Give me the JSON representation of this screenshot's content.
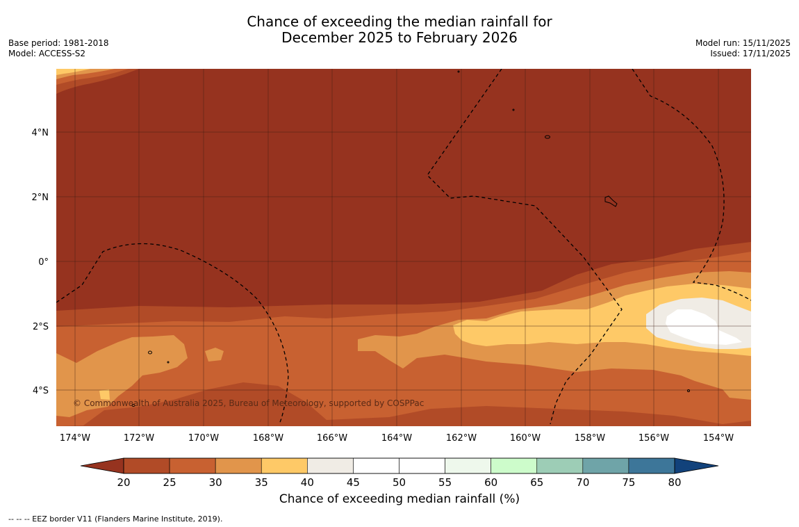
{
  "title": {
    "line1": "Chance of exceeding the median rainfall for",
    "line2": "December 2025 to February 2026"
  },
  "meta_left": {
    "base_period": "Base period: 1981-2018",
    "model": "Model: ACCESS-S2"
  },
  "meta_right": {
    "model_run": "Model run: 15/11/2025",
    "issued": "Issued: 17/11/2025"
  },
  "map": {
    "lat_labels": [
      "4°N",
      "2°N",
      "0°",
      "2°S",
      "4°S"
    ],
    "lon_labels": [
      "174°W",
      "172°W",
      "170°W",
      "168°W",
      "166°W",
      "164°W",
      "162°W",
      "160°W",
      "158°W",
      "156°W",
      "154°W"
    ],
    "copyright": "© Commonwealth of Australia 2025, Bureau of Meteorology, supported by COSPPac"
  },
  "colorbar": {
    "ticks": [
      "20",
      "25",
      "30",
      "35",
      "40",
      "45",
      "50",
      "55",
      "60",
      "65",
      "70",
      "75",
      "80"
    ],
    "colors": [
      "#b14b27",
      "#c86131",
      "#e1954b",
      "#fec967",
      "#f0ece5",
      "#ffffff",
      "#ffffff",
      "#eef8ec",
      "#cdfccb",
      "#9dcdb6",
      "#6fa4a8",
      "#3d7699"
    ],
    "low_extend_color": "#96331f",
    "high_extend_color": "#12427b",
    "label": "Chance of exceeding median rainfall (%)"
  },
  "colors": {
    "lt20": "#96331f",
    "c20_25": "#b14b27",
    "c25_30": "#c86131",
    "c30_35": "#e1954b",
    "c35_40": "#fec967",
    "c40_45": "#f0ece5",
    "c45_55": "#ffffff"
  },
  "footnote": "-- -- -- EEZ border V11 (Flanders Marine Institute, 2019)."
}
